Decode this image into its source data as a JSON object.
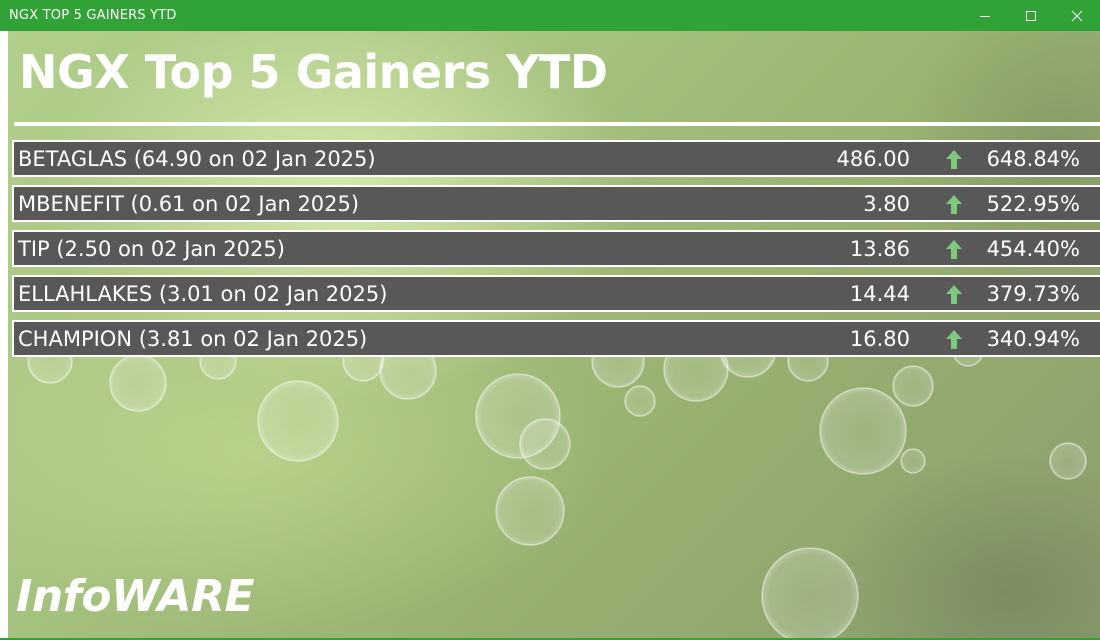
{
  "window": {
    "title": "NGX TOP 5 GAINERS YTD"
  },
  "main": {
    "heading": "NGX Top 5 Gainers YTD",
    "brand": "InfoWARE",
    "rows": [
      {
        "label": "BETAGLAS (64.90 on 02 Jan 2025)",
        "price": "486.00",
        "change": "648.84%",
        "direction": "up"
      },
      {
        "label": "MBENEFIT (0.61 on 02 Jan 2025)",
        "price": "3.80",
        "change": "522.95%",
        "direction": "up"
      },
      {
        "label": "TIP (2.50 on 02 Jan 2025)",
        "price": "13.86",
        "change": "454.40%",
        "direction": "up"
      },
      {
        "label": "ELLAHLAKES (3.01 on 02 Jan 2025)",
        "price": "14.44",
        "change": "379.73%",
        "direction": "up"
      },
      {
        "label": "CHAMPION (3.81 on 02 Jan 2025)",
        "price": "16.80",
        "change": "340.94%",
        "direction": "up"
      }
    ]
  },
  "icons": {
    "minimize": "minimize-icon",
    "maximize": "maximize-icon",
    "close": "close-icon",
    "trend": "arrow-up-icon"
  },
  "colors": {
    "titlebar": "#31a236",
    "row_background": "#585858",
    "arrow_up": "#7fc97f",
    "text": "#ffffff"
  }
}
